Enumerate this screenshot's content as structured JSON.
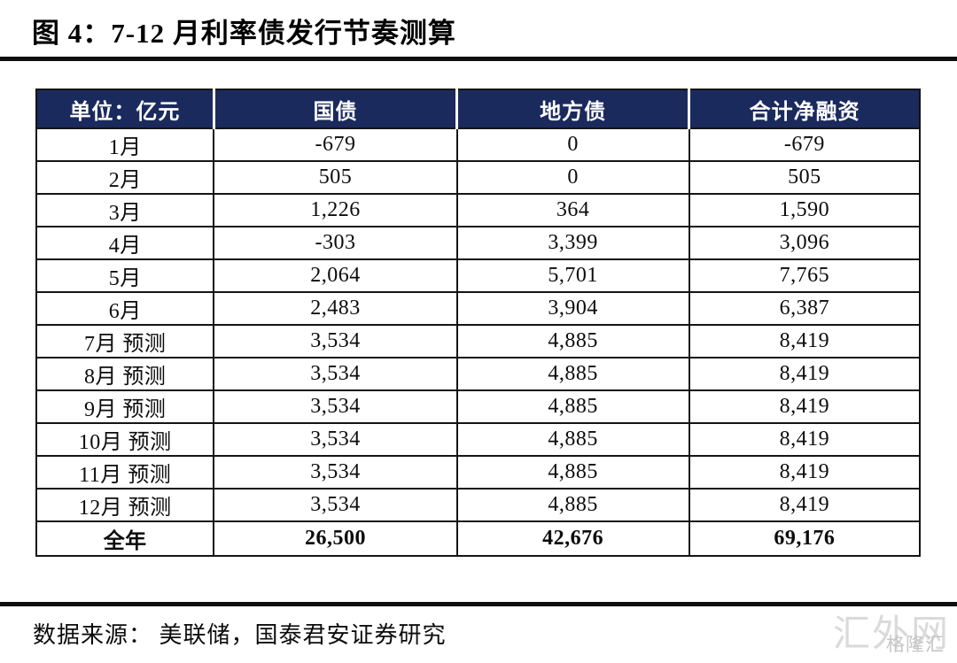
{
  "figure": {
    "title": "图 4：7-12 月利率债发行节奏测算",
    "source": "数据来源： 美联储，国泰君安证券研究"
  },
  "colors": {
    "header_bg": "#1b2a5d",
    "border": "#141414",
    "watermark": "#dadada"
  },
  "table": {
    "unit_label": "单位：亿元",
    "headers": [
      "单位：亿元",
      "国债",
      "地方债",
      "合计净融资"
    ],
    "rows": [
      [
        "1月",
        "-679",
        "0",
        "-679"
      ],
      [
        "2月",
        "505",
        "0",
        "505"
      ],
      [
        "3月",
        "1,226",
        "364",
        "1,590"
      ],
      [
        "4月",
        "-303",
        "3,399",
        "3,096"
      ],
      [
        "5月",
        "2,064",
        "5,701",
        "7,765"
      ],
      [
        "6月",
        "2,483",
        "3,904",
        "6,387"
      ],
      [
        "7月 预测",
        "3,534",
        "4,885",
        "8,419"
      ],
      [
        "8月 预测",
        "3,534",
        "4,885",
        "8,419"
      ],
      [
        "9月 预测",
        "3,534",
        "4,885",
        "8,419"
      ],
      [
        "10月 预测",
        "3,534",
        "4,885",
        "8,419"
      ],
      [
        "11月 预测",
        "3,534",
        "4,885",
        "8,419"
      ],
      [
        "12月 预测",
        "3,534",
        "4,885",
        "8,419"
      ]
    ],
    "total_row": [
      "全年",
      "26,500",
      "42,676",
      "69,176"
    ]
  },
  "watermark": {
    "large": "汇外网",
    "small": "格隆汇"
  }
}
